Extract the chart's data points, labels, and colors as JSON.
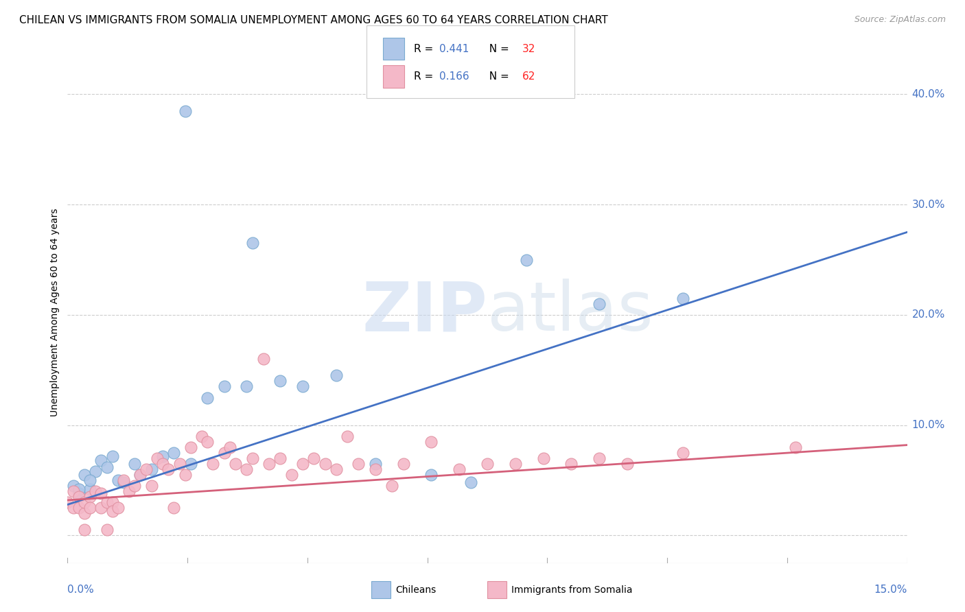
{
  "title": "CHILEAN VS IMMIGRANTS FROM SOMALIA UNEMPLOYMENT AMONG AGES 60 TO 64 YEARS CORRELATION CHART",
  "source": "Source: ZipAtlas.com",
  "ylabel": "Unemployment Among Ages 60 to 64 years",
  "xmin": 0.0,
  "xmax": 0.15,
  "ymin": -0.025,
  "ymax": 0.43,
  "blue_scatter_x": [
    0.021,
    0.033,
    0.001,
    0.002,
    0.003,
    0.004,
    0.005,
    0.006,
    0.007,
    0.008,
    0.009,
    0.01,
    0.012,
    0.013,
    0.015,
    0.017,
    0.019,
    0.022,
    0.025,
    0.028,
    0.032,
    0.038,
    0.042,
    0.048,
    0.055,
    0.065,
    0.072,
    0.082,
    0.095,
    0.11,
    0.002,
    0.004
  ],
  "blue_scatter_y": [
    0.385,
    0.265,
    0.045,
    0.038,
    0.055,
    0.042,
    0.058,
    0.068,
    0.062,
    0.072,
    0.05,
    0.048,
    0.065,
    0.055,
    0.06,
    0.072,
    0.075,
    0.065,
    0.125,
    0.135,
    0.135,
    0.14,
    0.135,
    0.145,
    0.065,
    0.055,
    0.048,
    0.25,
    0.21,
    0.215,
    0.042,
    0.05
  ],
  "pink_scatter_x": [
    0.0,
    0.001,
    0.001,
    0.002,
    0.002,
    0.003,
    0.003,
    0.004,
    0.004,
    0.005,
    0.006,
    0.006,
    0.007,
    0.008,
    0.008,
    0.009,
    0.01,
    0.011,
    0.012,
    0.013,
    0.014,
    0.015,
    0.016,
    0.017,
    0.018,
    0.019,
    0.02,
    0.021,
    0.022,
    0.024,
    0.025,
    0.026,
    0.028,
    0.029,
    0.03,
    0.032,
    0.033,
    0.035,
    0.036,
    0.038,
    0.04,
    0.042,
    0.044,
    0.046,
    0.048,
    0.05,
    0.052,
    0.055,
    0.058,
    0.06,
    0.065,
    0.07,
    0.075,
    0.08,
    0.085,
    0.09,
    0.095,
    0.1,
    0.11,
    0.13,
    0.003,
    0.007
  ],
  "pink_scatter_y": [
    0.03,
    0.025,
    0.04,
    0.035,
    0.025,
    0.02,
    0.03,
    0.035,
    0.025,
    0.04,
    0.025,
    0.038,
    0.03,
    0.03,
    0.022,
    0.025,
    0.05,
    0.04,
    0.045,
    0.055,
    0.06,
    0.045,
    0.07,
    0.065,
    0.06,
    0.025,
    0.065,
    0.055,
    0.08,
    0.09,
    0.085,
    0.065,
    0.075,
    0.08,
    0.065,
    0.06,
    0.07,
    0.16,
    0.065,
    0.07,
    0.055,
    0.065,
    0.07,
    0.065,
    0.06,
    0.09,
    0.065,
    0.06,
    0.045,
    0.065,
    0.085,
    0.06,
    0.065,
    0.065,
    0.07,
    0.065,
    0.07,
    0.065,
    0.075,
    0.08,
    0.005,
    0.005
  ],
  "blue_line_x0": 0.0,
  "blue_line_x1": 0.15,
  "blue_line_y0": 0.028,
  "blue_line_y1": 0.275,
  "pink_line_x0": 0.0,
  "pink_line_x1": 0.15,
  "pink_line_y0": 0.032,
  "pink_line_y1": 0.082,
  "blue_line_color": "#4472c4",
  "pink_line_color": "#d4607a",
  "blue_scatter_color": "#aec6e8",
  "pink_scatter_color": "#f4b8c8",
  "blue_scatter_edge": "#7aaad0",
  "pink_scatter_edge": "#e090a0",
  "watermark_zip": "ZIP",
  "watermark_atlas": "atlas",
  "grid_color": "#cccccc",
  "background_color": "#ffffff",
  "title_fontsize": 11,
  "axis_label_fontsize": 10,
  "tick_fontsize": 11,
  "source_fontsize": 9,
  "legend_r_color": "#4472c4",
  "legend_n_color": "#ff2222"
}
